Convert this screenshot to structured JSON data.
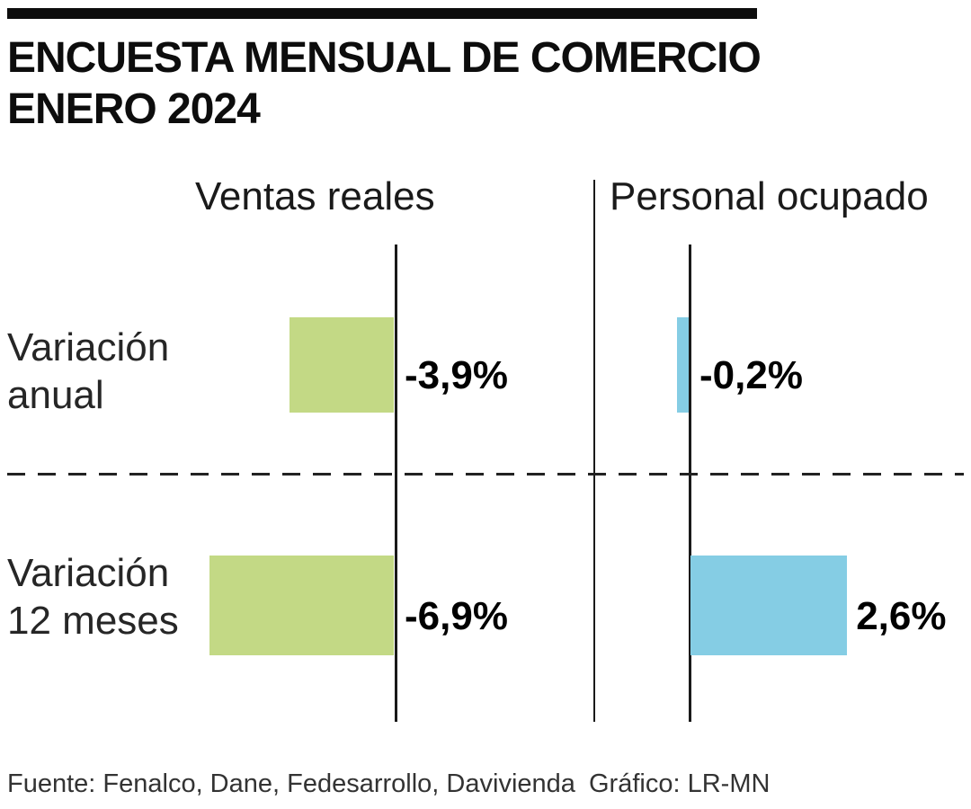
{
  "title_line1": "ENCUESTA MENSUAL DE COMERCIO",
  "title_line2": "ENERO 2024",
  "rows": [
    {
      "line1": "Variación",
      "line2": "anual"
    },
    {
      "line1": "Variación",
      "line2": "12 meses"
    }
  ],
  "chart_data": {
    "type": "bar",
    "orientation": "horizontal",
    "title": "Encuesta Mensual de Comercio - Enero 2024",
    "categories": [
      "Variación anual",
      "Variación 12 meses"
    ],
    "panels": [
      {
        "name": "Ventas reales",
        "color": "#c3d985",
        "values": [
          -3.9,
          -6.9
        ],
        "labels": [
          "-3,9%",
          "-6,9%"
        ]
      },
      {
        "name": "Personal ocupado",
        "color": "#85cde4",
        "values": [
          -0.2,
          2.6
        ],
        "labels": [
          "-0,2%",
          "2,6%"
        ]
      }
    ],
    "baseline": 0,
    "value_format": "percent, comma decimal",
    "grid": "off",
    "separator": "dashed horizontal line between rows"
  },
  "footer": {
    "source": "Fuente: Fenalco, Dane, Fedesarrollo, Davivienda",
    "credit": "Gráfico: LR-MN"
  }
}
